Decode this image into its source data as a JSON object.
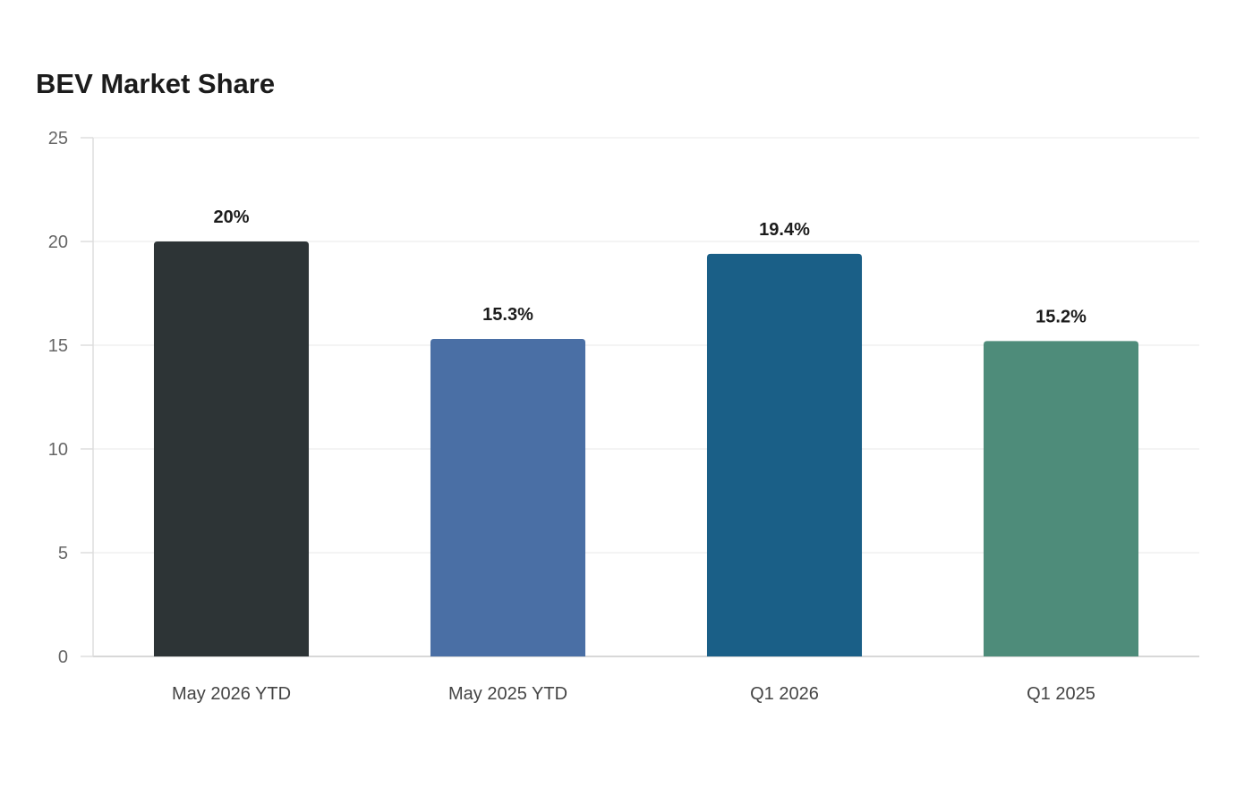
{
  "chart_data": {
    "type": "bar",
    "title": "BEV Market Share",
    "categories": [
      "May 2026 YTD",
      "May 2025 YTD",
      "Q1 2026",
      "Q1 2025"
    ],
    "values": [
      20,
      15.3,
      19.4,
      15.2
    ],
    "data_labels": [
      "20%",
      "15.3%",
      "19.4%",
      "15.2%"
    ],
    "bar_colors": [
      "#2d3436",
      "#4a6fa5",
      "#1a5f87",
      "#4e8c7a"
    ],
    "xlabel": "",
    "ylabel": "",
    "ylim": [
      0,
      25
    ],
    "yticks": [
      0,
      5,
      10,
      15,
      20,
      25
    ],
    "grid": true,
    "legend": false
  }
}
